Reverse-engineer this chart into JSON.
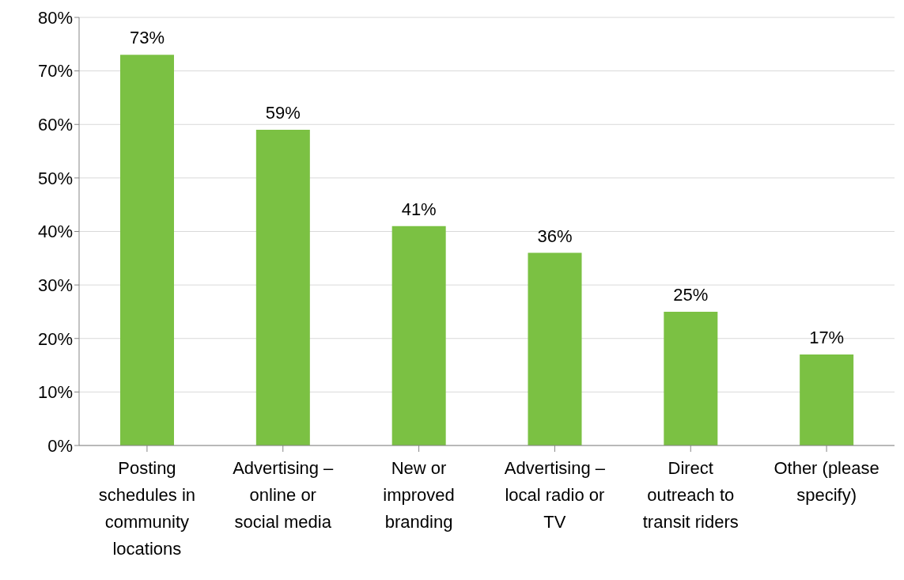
{
  "chart_data": {
    "type": "bar",
    "categories": [
      "Posting schedules in community locations",
      "Advertising – online or social media",
      "New or improved branding",
      "Advertising – local radio or TV",
      "Direct outreach to transit riders",
      "Other (please specify)"
    ],
    "values": [
      73,
      59,
      41,
      36,
      25,
      17
    ],
    "value_labels": [
      "73%",
      "59%",
      "41%",
      "36%",
      "25%",
      "17%"
    ],
    "color": "#7bc143",
    "ylim": [
      0,
      80
    ],
    "yticks": [
      {
        "value": 0,
        "label": "0%"
      },
      {
        "value": 10,
        "label": "10%"
      },
      {
        "value": 20,
        "label": "20%"
      },
      {
        "value": 30,
        "label": "30%"
      },
      {
        "value": 40,
        "label": "40%"
      },
      {
        "value": 50,
        "label": "50%"
      },
      {
        "value": 60,
        "label": "60%"
      },
      {
        "value": 70,
        "label": "70%"
      },
      {
        "value": 80,
        "label": "80%"
      }
    ],
    "grid": "y",
    "legend": false
  }
}
